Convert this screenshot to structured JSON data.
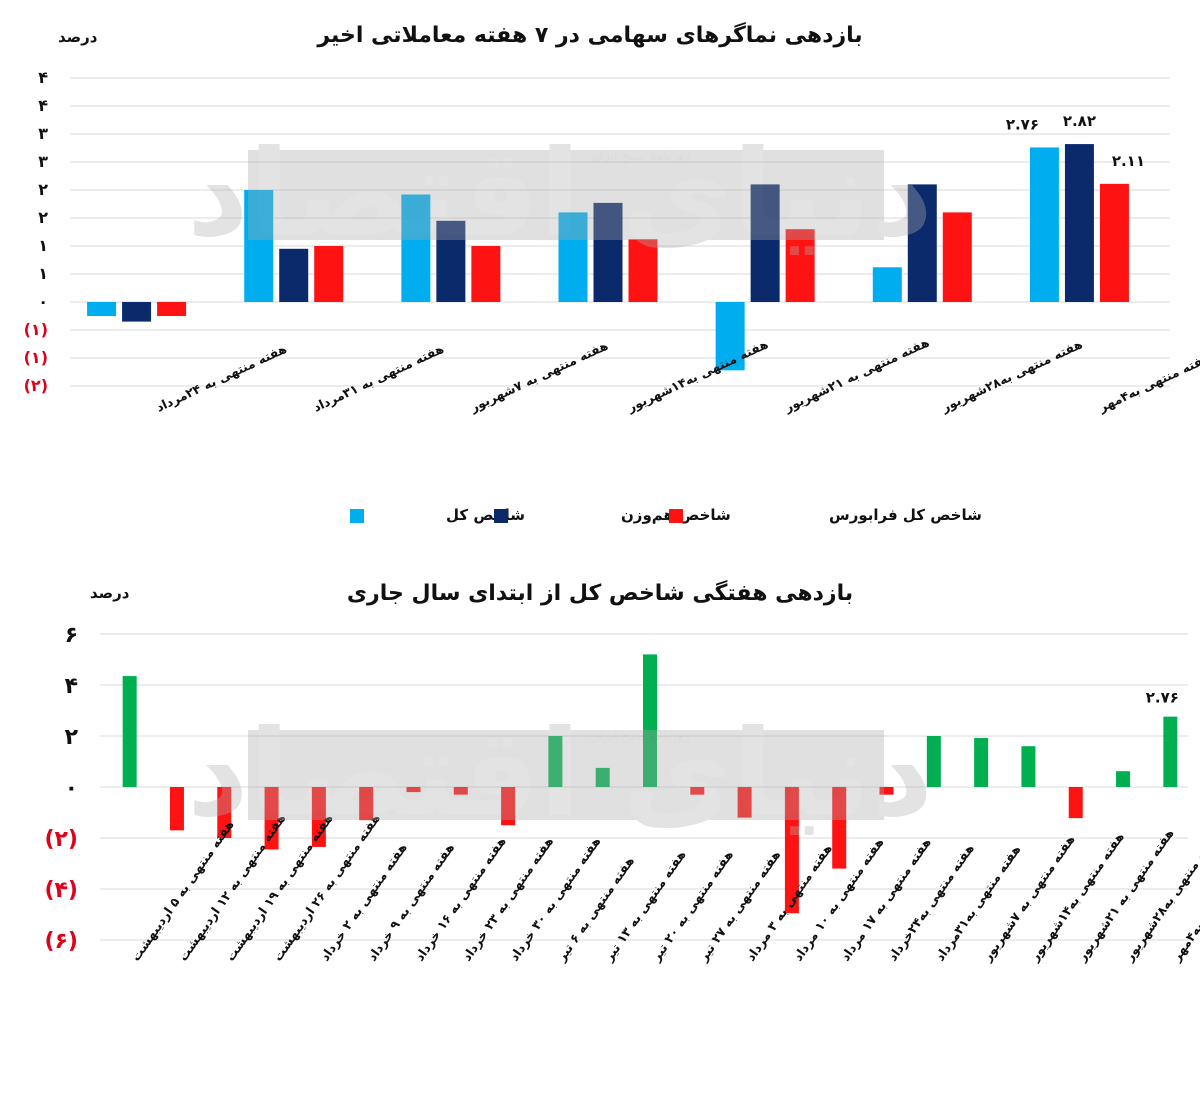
{
  "chart_data": [
    {
      "type": "bar",
      "title": "بازدهی نماگرهای سهامی در ۷ هفته معاملاتی اخیر",
      "unit_label": "درصد",
      "ylim": [
        -1.5,
        4
      ],
      "ytick_values": [
        -1.5,
        -1,
        -0.5,
        0,
        0.5,
        1,
        1.5,
        2,
        2.5,
        3,
        3.5,
        4
      ],
      "ytick_labels": [
        "(۲)",
        "(۱)",
        "(۱)",
        "۰",
        "۱",
        "۱",
        "۲",
        "۲",
        "۳",
        "۳",
        "۴",
        "۴"
      ],
      "legend_position": "bottom",
      "categories": [
        "هفته منتهی به ۲۴مرداد",
        "هفته منتهی به ۳۱مرداد",
        "هفته منتهی به ۷شهریور",
        "هفته منتهی به۱۴شهریور",
        "هفته منتهی به ۲۱شهریور",
        "هفته منتهی به۲۸شهریور",
        "هفته منتهی به۴مهر"
      ],
      "series": [
        {
          "name": "شاخص کل",
          "color": "#00AEEF",
          "values": [
            -0.25,
            2.0,
            1.92,
            1.6,
            -1.22,
            0.62,
            2.76
          ]
        },
        {
          "name": "شاخص هم‌وزن",
          "color": "#0B2A6B",
          "values": [
            -0.35,
            0.95,
            1.45,
            1.77,
            2.1,
            2.1,
            2.82
          ]
        },
        {
          "name": "شاخص کل فرابورس",
          "color": "#FF1212",
          "values": [
            -0.25,
            1.0,
            1.0,
            1.12,
            1.3,
            1.6,
            2.11
          ]
        }
      ],
      "data_labels": [
        {
          "category_index": 6,
          "series_index": 0,
          "text": "۲.۷۶"
        },
        {
          "category_index": 6,
          "series_index": 1,
          "text": "۲.۸۲"
        },
        {
          "category_index": 6,
          "series_index": 2,
          "text": "۲.۱۱"
        }
      ]
    },
    {
      "type": "bar",
      "title": "بازدهی هفتگی شاخص کل از ابتدای سال جاری",
      "unit_label": "درصد",
      "ylim": [
        -6,
        6
      ],
      "ytick_values": [
        -6,
        -4,
        -2,
        0,
        2,
        4,
        6
      ],
      "ytick_labels": [
        "(۶)",
        "(۴)",
        "(۲)",
        "۰",
        "۲",
        "۴",
        "۶"
      ],
      "positive_color": "#00B050",
      "negative_color": "#FF1212",
      "categories": [
        "هفته منتهی به ۵ اردیبهشت",
        "هفته منتهی به ۱۲ اردیبهشت",
        "هفته منتهی به ۱۹ اردیبهشت",
        "هفته منتهی به ۲۶ اردیبهشت",
        "هفته منتهی به ۲ خرداد",
        "هفته منتهی به ۹ خرداد",
        "هفته منتهی به ۱۶ خرداد",
        "هفته منتهی به ۲۳ خرداد",
        "هفته منتهی به ۳۰ خرداد",
        "هفته منتهی به ۶ تیر",
        "هفته منتهی به ۱۳ تیر",
        "هفته منتهی به ۲۰ تیر",
        "هفته منتهی به ۲۷ تیر",
        "هفته منتهی به ۳ مرداد",
        "هفته منتهی به ۱۰ مرداد",
        "هفته منتهی به ۱۷ مرداد",
        "هفته منتهی به۲۴خرداد",
        "هفته منتهی به۳۱مرداد",
        "هفته منتهی به ۷شهریور",
        "هفته منتهی به۱۴شهریور",
        "هفته منتهی به ۲۱شهریور",
        "هفته منتهی به۲۸شهریور",
        "هفته منتهی به۴مهر"
      ],
      "values": [
        4.35,
        -1.7,
        -2.0,
        -2.45,
        -2.35,
        -1.3,
        -0.2,
        -0.3,
        -1.5,
        2.0,
        0.75,
        5.2,
        -0.3,
        -1.2,
        -4.95,
        -3.2,
        -0.3,
        2.0,
        1.92,
        1.6,
        -1.22,
        0.62,
        2.76
      ],
      "data_labels": [
        {
          "category_index": 22,
          "text": "۲.۷۶"
        }
      ]
    }
  ],
  "watermark": {
    "logo_text": "دنیای اقتصاد",
    "caption": "روزنامه صبح ایران"
  }
}
